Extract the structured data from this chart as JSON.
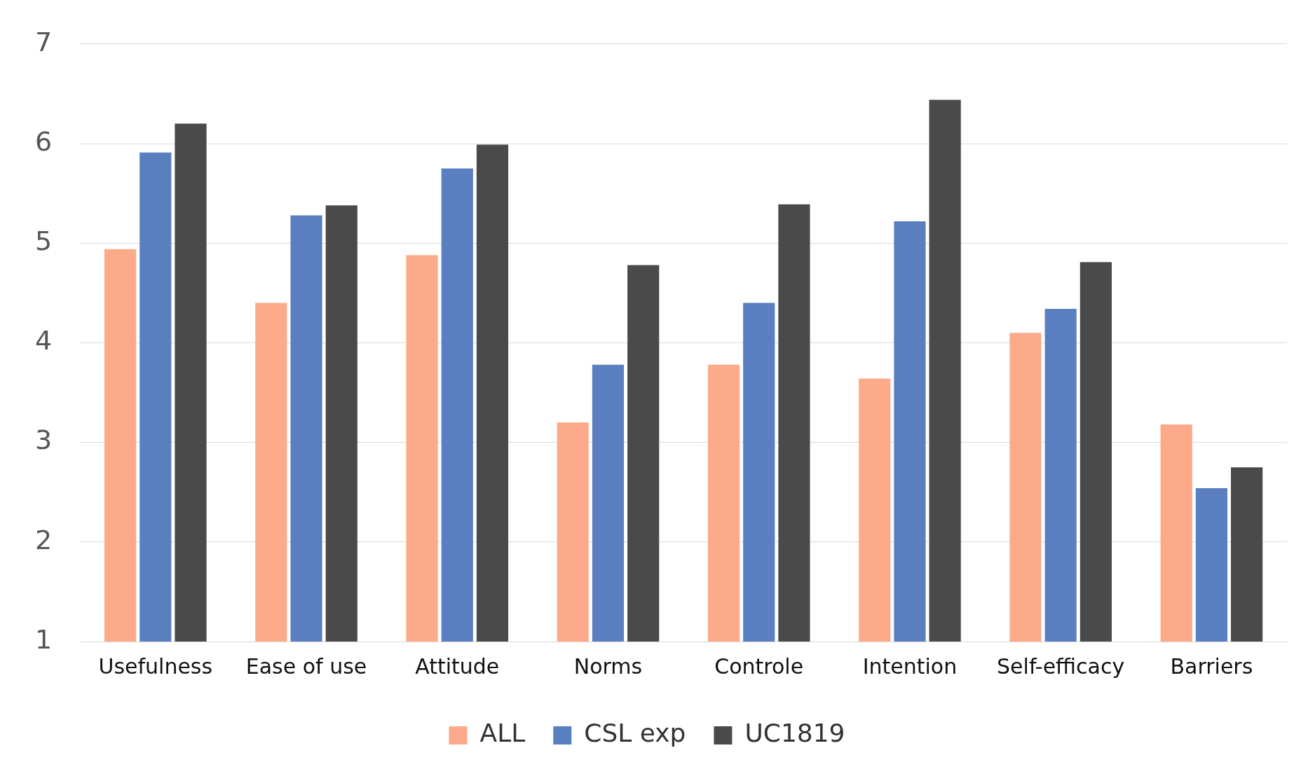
{
  "chart_data": {
    "type": "bar",
    "categories": [
      "Usefulness",
      "Ease of use",
      "Attitude",
      "Norms",
      "Controle",
      "Intention",
      "Self-efficacy",
      "Barriers"
    ],
    "series": [
      {
        "name": "ALL",
        "color": "#fcaa8a",
        "values": [
          4.94,
          4.4,
          4.88,
          3.2,
          3.78,
          3.64,
          4.1,
          3.18
        ]
      },
      {
        "name": "CSL exp",
        "color": "#5a7fc1",
        "values": [
          5.91,
          5.28,
          5.75,
          3.78,
          4.4,
          5.22,
          4.34,
          2.54
        ]
      },
      {
        "name": "UC1819",
        "color": "#4a4a4a",
        "values": [
          6.2,
          5.38,
          5.99,
          4.78,
          5.39,
          6.44,
          4.81,
          2.75
        ]
      }
    ],
    "ylim": [
      1,
      7
    ],
    "yticks": [
      1,
      2,
      3,
      4,
      5,
      6,
      7
    ],
    "grid": "y",
    "legend": "bottom"
  }
}
